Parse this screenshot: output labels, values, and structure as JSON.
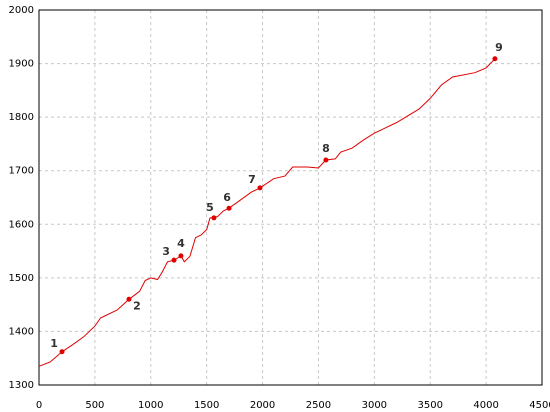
{
  "chart_data": {
    "type": "line",
    "color": "#e00000",
    "grid": true,
    "xlim": [
      0,
      4500
    ],
    "ylim": [
      1300,
      2000
    ],
    "xticks": [
      0,
      500,
      1000,
      1500,
      2000,
      2500,
      3000,
      3500,
      4000,
      4500
    ],
    "yticks": [
      1300,
      1400,
      1500,
      1600,
      1700,
      1800,
      1900,
      2000
    ],
    "x": [
      0,
      100,
      206,
      300,
      400,
      500,
      550,
      700,
      805,
      900,
      950,
      1000,
      1060,
      1100,
      1150,
      1208,
      1270,
      1300,
      1350,
      1400,
      1450,
      1500,
      1530,
      1565,
      1600,
      1650,
      1700,
      1800,
      1900,
      1977,
      2100,
      2200,
      2270,
      2400,
      2500,
      2567,
      2650,
      2700,
      2800,
      2900,
      3000,
      3200,
      3400,
      3500,
      3600,
      3700,
      3900,
      4000,
      4079
    ],
    "values": [
      1335,
      1343,
      1362,
      1375,
      1390,
      1410,
      1425,
      1440,
      1460,
      1475,
      1495,
      1500,
      1497,
      1510,
      1530,
      1533,
      1541,
      1530,
      1540,
      1575,
      1580,
      1590,
      1612,
      1612,
      1615,
      1625,
      1630,
      1645,
      1660,
      1668,
      1685,
      1690,
      1707,
      1707,
      1705,
      1720,
      1722,
      1735,
      1742,
      1757,
      1770,
      1790,
      1815,
      1835,
      1860,
      1875,
      1883,
      1892,
      1909
    ],
    "points": [
      {
        "label": "1",
        "x": 206,
        "y": 1362
      },
      {
        "label": "2",
        "x": 805,
        "y": 1460
      },
      {
        "label": "3",
        "x": 1208,
        "y": 1533
      },
      {
        "label": "4",
        "x": 1270,
        "y": 1541
      },
      {
        "label": "5",
        "x": 1565,
        "y": 1612
      },
      {
        "label": "6",
        "x": 1700,
        "y": 1630
      },
      {
        "label": "7",
        "x": 1977,
        "y": 1668
      },
      {
        "label": "8",
        "x": 2567,
        "y": 1720
      },
      {
        "label": "9",
        "x": 4079,
        "y": 1909
      }
    ]
  }
}
